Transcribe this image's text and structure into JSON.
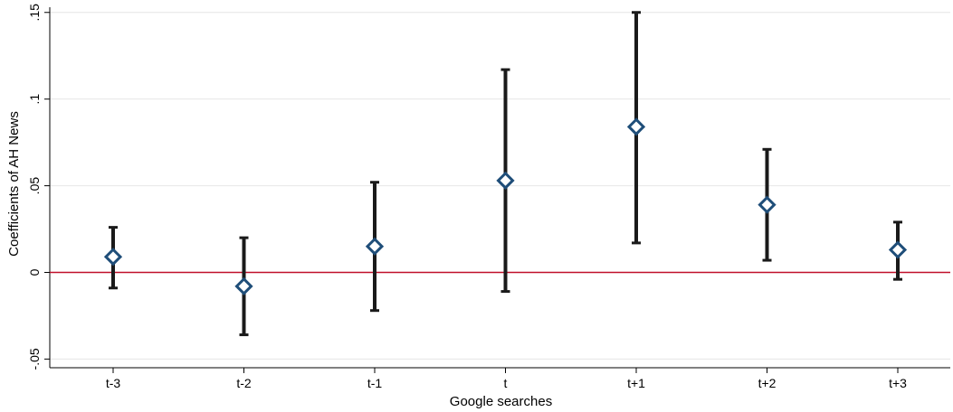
{
  "chart_data": {
    "type": "scatter",
    "subtype": "coefficient-plot-with-confidence-intervals",
    "xlabel": "Google searches",
    "ylabel": "Coefficients of AH News",
    "categories": [
      "t-3",
      "t-2",
      "t-1",
      "t",
      "t+1",
      "t+2",
      "t+3"
    ],
    "estimates": [
      0.009,
      -0.008,
      0.015,
      0.053,
      0.084,
      0.039,
      0.013
    ],
    "ci_low": [
      -0.009,
      -0.036,
      -0.022,
      -0.011,
      0.017,
      0.007,
      -0.004
    ],
    "ci_high": [
      0.026,
      0.02,
      0.052,
      0.117,
      0.15,
      0.071,
      0.029
    ],
    "yticks": [
      -0.05,
      0,
      0.05,
      0.1,
      0.15
    ],
    "ytick_labels": [
      "-.05",
      "0",
      ".05",
      ".1",
      ".15"
    ],
    "ylim": [
      -0.055,
      0.153
    ],
    "reference_line": {
      "y": 0,
      "color": "#c0102a"
    },
    "grid": "horizontal",
    "marker": "hollow-diamond",
    "colors": {
      "marker": "#1f4e79",
      "errorbar": "#1a1a1a",
      "grid": "#e6e6e6",
      "axis": "#000000"
    }
  }
}
